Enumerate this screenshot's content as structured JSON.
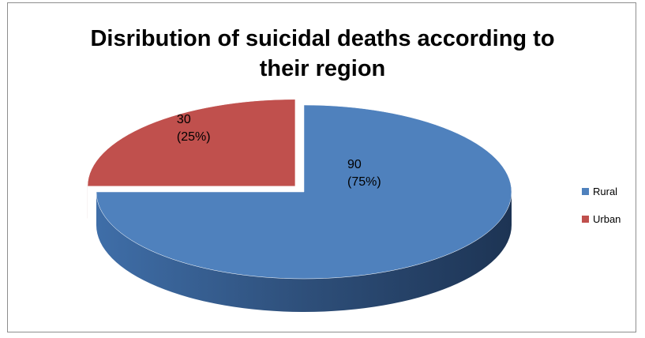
{
  "chart_data": {
    "type": "pie",
    "title": "Disribution of suicidal deaths according to their region",
    "title_lines": [
      "Disribution of suicidal deaths according to",
      "their region"
    ],
    "slices": [
      {
        "name": "Rural",
        "value": 90,
        "percent_label": "(75%)",
        "value_label": "90",
        "color": "#4f81bd"
      },
      {
        "name": "Urban",
        "value": 30,
        "percent_label": "(25%)",
        "value_label": "30",
        "color": "#c0504d"
      }
    ],
    "legend_placement": "right",
    "style": "3d-exploded"
  },
  "legend": [
    {
      "label": "Rural",
      "color": "#4f81bd"
    },
    {
      "label": "Urban",
      "color": "#c0504d"
    }
  ]
}
